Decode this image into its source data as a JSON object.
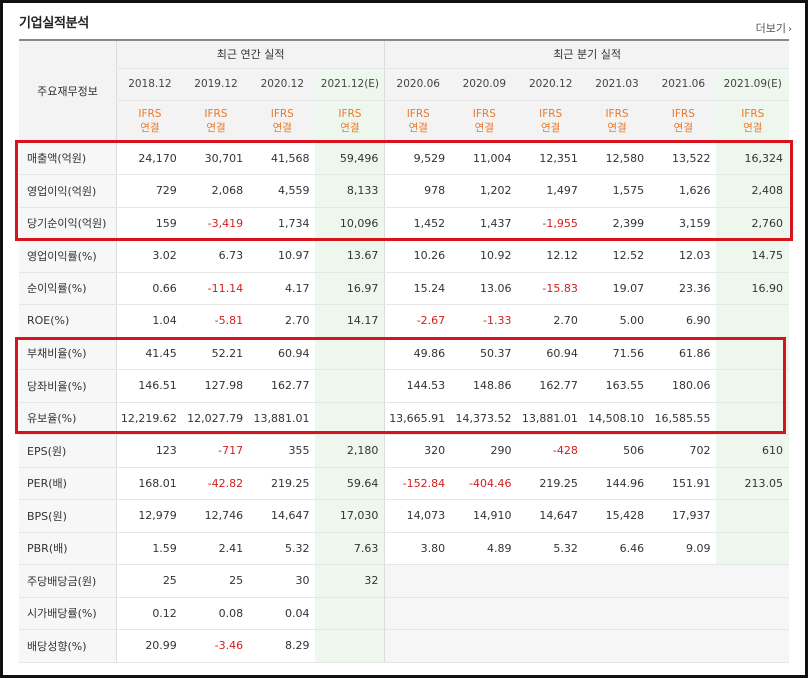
{
  "section_title": "기업실적분석",
  "more_link": "더보기",
  "header": {
    "row_head": "주요재무정보",
    "annual_label": "최근 연간 실적",
    "quarter_label": "최근 분기 실적",
    "annual_periods": [
      "2018.12",
      "2019.12",
      "2020.12",
      "2021.12(E)"
    ],
    "quarter_periods": [
      "2020.06",
      "2020.09",
      "2020.12",
      "2021.03",
      "2021.06",
      "2021.09(E)"
    ],
    "accounting_top": "IFRS",
    "accounting_bottom": "연결"
  },
  "rows": [
    {
      "label": "매출액(억원)",
      "values": [
        "24,170",
        "30,701",
        "41,568",
        "59,496",
        "9,529",
        "11,004",
        "12,351",
        "12,580",
        "13,522",
        "16,324"
      ]
    },
    {
      "label": "영업이익(억원)",
      "values": [
        "729",
        "2,068",
        "4,559",
        "8,133",
        "978",
        "1,202",
        "1,497",
        "1,575",
        "1,626",
        "2,408"
      ]
    },
    {
      "label": "당기순이익(억원)",
      "values": [
        "159",
        "-3,419",
        "1,734",
        "10,096",
        "1,452",
        "1,437",
        "-1,955",
        "2,399",
        "3,159",
        "2,760"
      ]
    },
    {
      "label": "영업이익률(%)",
      "values": [
        "3.02",
        "6.73",
        "10.97",
        "13.67",
        "10.26",
        "10.92",
        "12.12",
        "12.52",
        "12.03",
        "14.75"
      ]
    },
    {
      "label": "순이익률(%)",
      "values": [
        "0.66",
        "-11.14",
        "4.17",
        "16.97",
        "15.24",
        "13.06",
        "-15.83",
        "19.07",
        "23.36",
        "16.90"
      ]
    },
    {
      "label": "ROE(%)",
      "values": [
        "1.04",
        "-5.81",
        "2.70",
        "14.17",
        "-2.67",
        "-1.33",
        "2.70",
        "5.00",
        "6.90",
        ""
      ]
    },
    {
      "label": "부채비율(%)",
      "values": [
        "41.45",
        "52.21",
        "60.94",
        "",
        "49.86",
        "50.37",
        "60.94",
        "71.56",
        "61.86",
        ""
      ]
    },
    {
      "label": "당좌비율(%)",
      "values": [
        "146.51",
        "127.98",
        "162.77",
        "",
        "144.53",
        "148.86",
        "162.77",
        "163.55",
        "180.06",
        ""
      ]
    },
    {
      "label": "유보율(%)",
      "values": [
        "12,219.62",
        "12,027.79",
        "13,881.01",
        "",
        "13,665.91",
        "14,373.52",
        "13,881.01",
        "14,508.10",
        "16,585.55",
        ""
      ]
    },
    {
      "label": "EPS(원)",
      "values": [
        "123",
        "-717",
        "355",
        "2,180",
        "320",
        "290",
        "-428",
        "506",
        "702",
        "610"
      ]
    },
    {
      "label": "PER(배)",
      "values": [
        "168.01",
        "-42.82",
        "219.25",
        "59.64",
        "-152.84",
        "-404.46",
        "219.25",
        "144.96",
        "151.91",
        "213.05"
      ]
    },
    {
      "label": "BPS(원)",
      "values": [
        "12,979",
        "12,746",
        "14,647",
        "17,030",
        "14,073",
        "14,910",
        "14,647",
        "15,428",
        "17,937",
        ""
      ]
    },
    {
      "label": "PBR(배)",
      "values": [
        "1.59",
        "2.41",
        "5.32",
        "7.63",
        "3.80",
        "4.89",
        "5.32",
        "6.46",
        "9.09",
        ""
      ]
    },
    {
      "label": "주당배당금(원)",
      "values": [
        "25",
        "25",
        "30",
        "32",
        "",
        "",
        "",
        "",
        "",
        ""
      ]
    },
    {
      "label": "시가배당률(%)",
      "values": [
        "0.12",
        "0.08",
        "0.04",
        "",
        "",
        "",
        "",
        "",
        "",
        ""
      ]
    },
    {
      "label": "배당성향(%)",
      "values": [
        "20.99",
        "-3.46",
        "8.29",
        "",
        "",
        "",
        "",
        "",
        "",
        ""
      ]
    }
  ],
  "highlight_color": "#d7141e",
  "negative_color": "#d21e1e",
  "accounting_color": "#e8792c"
}
